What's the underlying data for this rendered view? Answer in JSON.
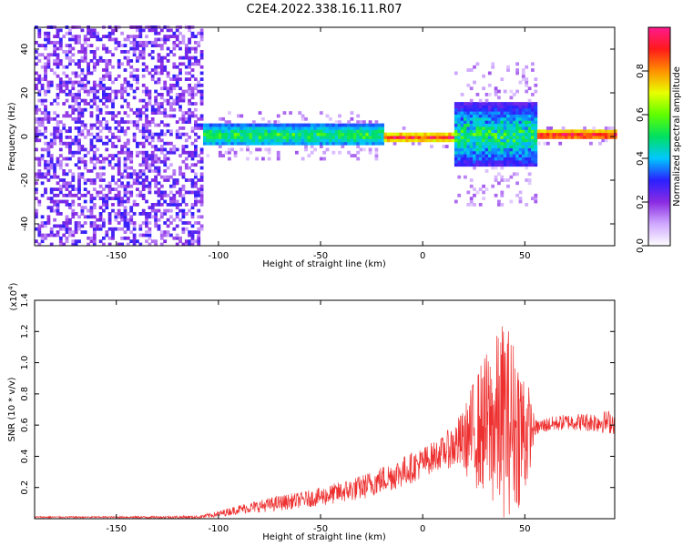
{
  "title": "C2E4.2022.338.16.11.R07",
  "chart_data": [
    {
      "type": "heatmap",
      "xlabel": "Height of straight line (km)",
      "ylabel": "Frequency (Hz)",
      "xlim": [
        -190,
        94
      ],
      "ylim": [
        -50,
        50
      ],
      "xticks": [
        -150,
        -100,
        -50,
        0,
        50
      ],
      "yticks": [
        -40,
        -20,
        0,
        20,
        40
      ],
      "colorbar": {
        "label": "Normalized spectral amplitude",
        "range": [
          0,
          1
        ],
        "ticks": [
          "0.0",
          "0.2",
          "0.4",
          "0.6",
          "0.8"
        ],
        "colors": [
          "#ffffff",
          "#cfa8ff",
          "#8a2be2",
          "#2a20ff",
          "#00c8ff",
          "#00e060",
          "#60ff00",
          "#e8ff00",
          "#ff9000",
          "#ff1a1a",
          "#ff1a90"
        ]
      },
      "regions": [
        {
          "x_range": [
            -190,
            -108
          ],
          "frequency_range": [
            -50,
            50
          ],
          "amplitude": "0.1-0.3",
          "pattern": "scattered noise"
        },
        {
          "x_range": [
            -108,
            -20
          ],
          "frequency_center": 0,
          "frequency_halfwidth": 5,
          "amplitude": "0.3-0.6"
        },
        {
          "x_range": [
            -20,
            15
          ],
          "frequency_center": -1,
          "frequency_halfwidth": 2,
          "amplitude": "0.6-1.0"
        },
        {
          "x_range": [
            15,
            55
          ],
          "frequency_center": 0,
          "frequency_halfwidth": 15,
          "amplitude": "0.2-0.6"
        },
        {
          "x_range": [
            55,
            94
          ],
          "frequency_center": 0,
          "frequency_halfwidth": 2,
          "amplitude": "0.7-1.0"
        }
      ]
    },
    {
      "type": "line",
      "xlabel": "Height of straight line (km)",
      "ylabel": "SNR (10 * v/v)",
      "y_multiplier": "(x10",
      "y_multiplier_exp": "4",
      "y_multiplier_close": ")",
      "xlim": [
        -190,
        94
      ],
      "ylim": [
        0,
        1.4
      ],
      "xticks": [
        -150,
        -100,
        -50,
        0,
        50
      ],
      "yticks": [
        0.2,
        0.4,
        0.6,
        0.8,
        1.0,
        1.2,
        1.4
      ],
      "color": "#ee3030",
      "series": [
        {
          "x": [
            -190,
            -150,
            -110,
            -100,
            -90,
            -80,
            -70,
            -60,
            -50,
            -40,
            -30,
            -20,
            -10,
            0,
            10,
            20,
            25,
            30,
            35,
            40,
            45,
            50,
            55,
            60,
            70,
            80,
            94
          ],
          "values": [
            0.01,
            0.01,
            0.01,
            0.03,
            0.06,
            0.08,
            0.1,
            0.12,
            0.14,
            0.17,
            0.2,
            0.25,
            0.3,
            0.36,
            0.43,
            0.5,
            0.55,
            0.6,
            0.6,
            0.65,
            0.6,
            0.55,
            0.58,
            0.6,
            0.62,
            0.62,
            0.62
          ],
          "spread": [
            0.005,
            0.005,
            0.01,
            0.02,
            0.03,
            0.04,
            0.05,
            0.05,
            0.06,
            0.07,
            0.08,
            0.09,
            0.1,
            0.1,
            0.1,
            0.2,
            0.35,
            0.45,
            0.55,
            0.65,
            0.55,
            0.45,
            0.05,
            0.05,
            0.05,
            0.06,
            0.08
          ]
        }
      ]
    }
  ]
}
